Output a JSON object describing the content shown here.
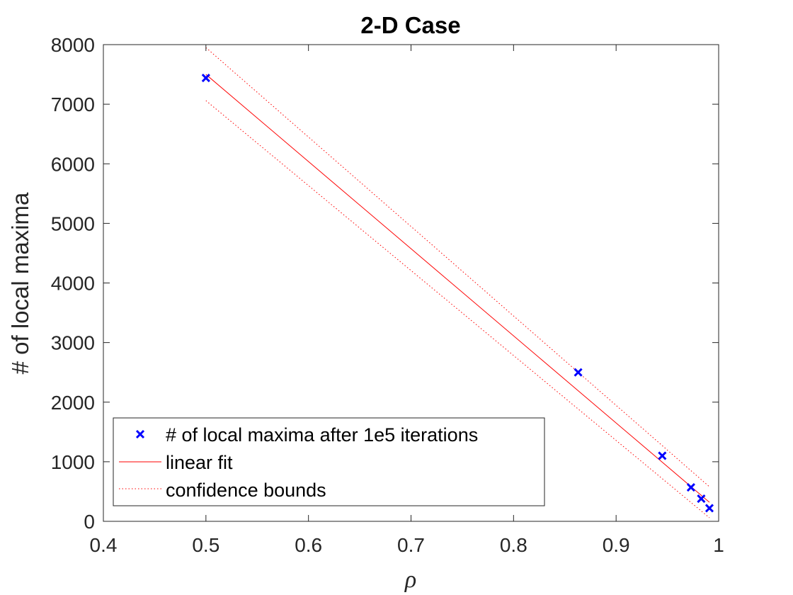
{
  "chart_data": {
    "type": "scatter",
    "title": "2-D Case",
    "xlabel": "ρ",
    "ylabel": "# of local maxima",
    "xlim": [
      0.4,
      1
    ],
    "ylim": [
      0,
      8000
    ],
    "xticks": [
      "0.4",
      "0.5",
      "0.6",
      "0.7",
      "0.8",
      "0.9",
      "1"
    ],
    "yticks": [
      "0",
      "1000",
      "2000",
      "3000",
      "4000",
      "5000",
      "6000",
      "7000",
      "8000"
    ],
    "grid": false,
    "box": true,
    "legend_position": "bottom-left",
    "series": [
      {
        "name": "# of local maxima after 1e5 iterations",
        "kind": "markers",
        "marker": "x",
        "color": "#0000ff",
        "x": [
          0.5,
          0.863,
          0.945,
          0.973,
          0.983,
          0.991
        ],
        "y": [
          7440,
          2500,
          1100,
          570,
          380,
          220
        ]
      },
      {
        "name": "linear fit",
        "kind": "line",
        "style": "solid",
        "color": "#ff0000",
        "x": [
          0.5,
          0.991
        ],
        "y": [
          7500,
          320
        ]
      },
      {
        "name": "confidence bounds",
        "kind": "line",
        "style": "dotted",
        "color": "#ff0000",
        "x": [
          0.5,
          0.991
        ],
        "y": [
          7950,
          580
        ]
      },
      {
        "kind": "line",
        "style": "dotted",
        "color": "#ff0000",
        "x": [
          0.5,
          0.991
        ],
        "y": [
          7060,
          60
        ]
      }
    ]
  }
}
